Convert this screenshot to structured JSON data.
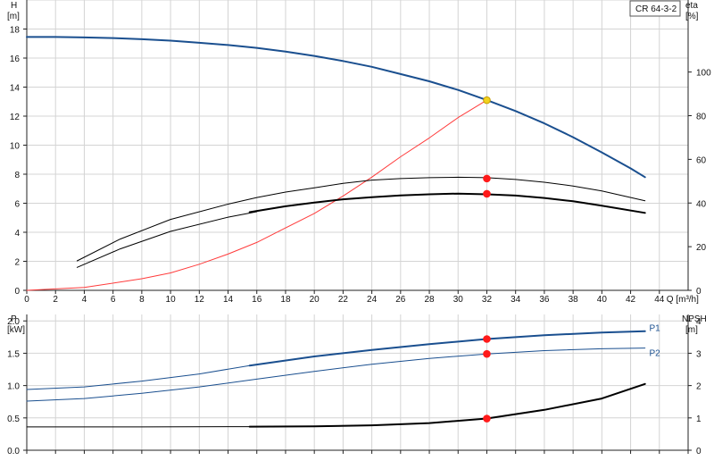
{
  "chart_data": [
    {
      "type": "line",
      "panel": "H-Q",
      "title": "CR 64-3-2",
      "left_axis": {
        "label_line1": "H",
        "label_line2": "[m]",
        "lim": [
          0,
          20
        ],
        "ticks": [
          0,
          2,
          4,
          6,
          8,
          10,
          12,
          14,
          16,
          18
        ]
      },
      "right_axis": {
        "label_line1": "eta",
        "label_line2": "[%]",
        "lim": [
          0,
          133
        ],
        "ticks": [
          0,
          20,
          40,
          60,
          80,
          100
        ]
      },
      "x_axis": {
        "label": "Q [m³/h]",
        "lim": [
          0,
          46
        ],
        "ticks": [
          0,
          2,
          4,
          6,
          8,
          10,
          12,
          14,
          16,
          18,
          20,
          22,
          24,
          26,
          28,
          30,
          32,
          34,
          36,
          38,
          40,
          42,
          44
        ]
      },
      "grid": true,
      "series": [
        {
          "color": "#1a4f8f",
          "width": 2,
          "axis": "left",
          "x": [
            0,
            2,
            4,
            6,
            8,
            10,
            12,
            14,
            16,
            18,
            20,
            22,
            24,
            26,
            28,
            30,
            32,
            34,
            36,
            38,
            40,
            42,
            43
          ],
          "y": [
            17.45,
            17.45,
            17.42,
            17.38,
            17.3,
            17.2,
            17.05,
            16.9,
            16.7,
            16.45,
            16.15,
            15.8,
            15.4,
            14.9,
            14.4,
            13.8,
            13.1,
            12.35,
            11.5,
            10.55,
            9.5,
            8.4,
            7.8
          ]
        },
        {
          "color": "#1a4f8f",
          "width": 2,
          "axis": "left",
          "note": "",
          "x": [],
          "y": []
        },
        {
          "color": "#ff3b3b",
          "width": 1,
          "axis": "left",
          "x": [
            0,
            4,
            8,
            10,
            12,
            14,
            16,
            18,
            20,
            22,
            24,
            26,
            28,
            30,
            32
          ],
          "y": [
            0,
            0.2,
            0.8,
            1.2,
            1.8,
            2.5,
            3.3,
            4.3,
            5.3,
            6.5,
            7.8,
            9.2,
            10.5,
            11.9,
            13.1
          ]
        },
        {
          "color": "#000000",
          "width": 1,
          "axis": "right",
          "x": [
            3.5,
            6.5,
            10,
            14,
            16,
            18,
            20,
            22,
            24,
            26,
            28,
            30,
            32,
            34,
            36,
            38,
            40,
            43
          ],
          "y": [
            13.5,
            23.5,
            32.5,
            39.5,
            42.5,
            45,
            47,
            49,
            50.5,
            51.2,
            51.6,
            51.8,
            51.6,
            50.8,
            49.5,
            47.8,
            45.5,
            41
          ]
        },
        {
          "color": "#000000",
          "width": 1,
          "axis": "right",
          "x": [
            3.5,
            6.5,
            10,
            14,
            16
          ],
          "y": [
            10.5,
            19,
            27,
            33.5,
            36
          ]
        },
        {
          "color": "#000000",
          "width": 2,
          "axis": "right",
          "x": [
            15.5,
            18,
            20,
            22,
            24,
            26,
            28,
            30,
            32,
            34,
            36,
            38,
            40,
            43
          ],
          "y": [
            35.8,
            38.5,
            40.2,
            41.7,
            42.7,
            43.5,
            44,
            44.3,
            44,
            43.4,
            42.3,
            40.8,
            38.8,
            35.5
          ]
        }
      ],
      "markers": [
        {
          "x": 32,
          "y": 13.1,
          "axis": "left",
          "color": "#f2d21c",
          "stroke": "#c29a00"
        },
        {
          "x": 32,
          "y": 7.7,
          "axis": "left",
          "color": "#ff1a1a",
          "stroke": "#ff1a1a"
        },
        {
          "x": 32,
          "y": 6.65,
          "axis": "left",
          "color": "#ff1a1a",
          "stroke": "#ff1a1a"
        }
      ]
    },
    {
      "type": "line",
      "panel": "P-NPSH",
      "left_axis": {
        "label_line1": "P",
        "label_line2": "[kW]",
        "lim": [
          0,
          2.1
        ],
        "ticks": [
          0,
          0.5,
          1.0,
          1.5,
          2.0
        ]
      },
      "right_axis": {
        "label_line1": "NPSH",
        "label_line2": "[m]",
        "lim": [
          0,
          4.2
        ],
        "ticks": [
          0,
          1,
          2,
          3,
          4
        ]
      },
      "x_axis": {
        "lim": [
          0,
          46
        ]
      },
      "grid": true,
      "series": [
        {
          "name": "P1",
          "color": "#1a4f8f",
          "width": 1,
          "axis": "left",
          "x": [
            0,
            4,
            8,
            12,
            15.5
          ],
          "y": [
            0.94,
            0.98,
            1.07,
            1.18,
            1.31
          ]
        },
        {
          "name": "P1",
          "color": "#1a4f8f",
          "width": 2,
          "axis": "left",
          "x": [
            15.5,
            20,
            24,
            28,
            32,
            36,
            40,
            43
          ],
          "y": [
            1.31,
            1.45,
            1.55,
            1.64,
            1.72,
            1.78,
            1.82,
            1.84
          ]
        },
        {
          "name": "P2",
          "color": "#1a4f8f",
          "width": 1,
          "axis": "left",
          "x": [
            0,
            4,
            8,
            12,
            16,
            20,
            24,
            28,
            32,
            36,
            40,
            43
          ],
          "y": [
            0.76,
            0.8,
            0.88,
            0.98,
            1.1,
            1.22,
            1.33,
            1.42,
            1.49,
            1.54,
            1.57,
            1.58
          ]
        },
        {
          "color": "#000000",
          "width": 1,
          "axis": "right",
          "x": [
            0,
            8,
            15.5
          ],
          "y": [
            0.72,
            0.72,
            0.73
          ]
        },
        {
          "color": "#000000",
          "width": 2,
          "axis": "right",
          "x": [
            15.5,
            20,
            24,
            28,
            32,
            36,
            40,
            43
          ],
          "y": [
            0.73,
            0.74,
            0.77,
            0.84,
            0.98,
            1.25,
            1.6,
            2.05
          ]
        }
      ],
      "markers": [
        {
          "x": 32,
          "y": 1.72,
          "axis": "left",
          "color": "#ff1a1a",
          "stroke": "#ff1a1a"
        },
        {
          "x": 32,
          "y": 1.49,
          "axis": "left",
          "color": "#ff1a1a",
          "stroke": "#ff1a1a"
        },
        {
          "x": 32,
          "y": 0.98,
          "axis": "right",
          "color": "#ff1a1a",
          "stroke": "#ff1a1a"
        }
      ],
      "series_labels": [
        {
          "text": "P1",
          "x": 43.3,
          "y": 1.9,
          "axis": "left"
        },
        {
          "text": "P2",
          "x": 43.3,
          "y": 1.51,
          "axis": "left"
        }
      ]
    }
  ]
}
